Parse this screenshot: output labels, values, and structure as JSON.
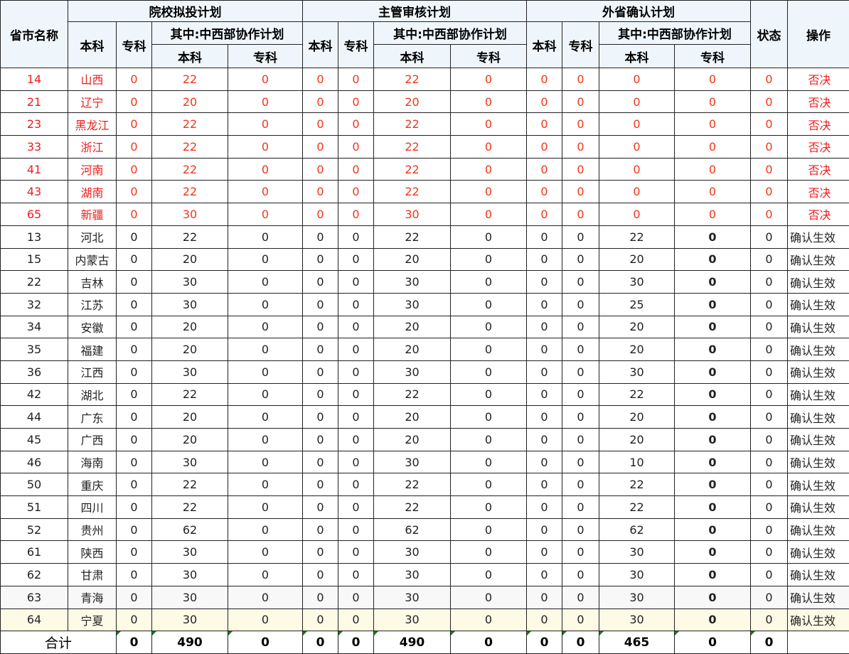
{
  "header": {
    "province": "省市名称",
    "groups": [
      "院校拟投计划",
      "主管审核计划",
      "外省确认计划"
    ],
    "undergrad": "本科",
    "junior": "专科",
    "cooperation": "其中:中西部协作计划",
    "status": "状态",
    "action": "操作"
  },
  "colors": {
    "rejected_text": "#f01c1c",
    "header_bg": "#eef6fc",
    "highlight_row_bg": "#fdfbe6"
  },
  "rows": [
    {
      "code": "14",
      "name": "山西",
      "values": [
        "0",
        "22",
        "0",
        "0",
        "0",
        "22",
        "0",
        "0",
        "0",
        "0",
        "0",
        "0"
      ],
      "action": "否决",
      "rejected": true
    },
    {
      "code": "21",
      "name": "辽宁",
      "values": [
        "0",
        "20",
        "0",
        "0",
        "0",
        "20",
        "0",
        "0",
        "0",
        "0",
        "0",
        "0"
      ],
      "action": "否决",
      "rejected": true
    },
    {
      "code": "23",
      "name": "黑龙江",
      "values": [
        "0",
        "22",
        "0",
        "0",
        "0",
        "22",
        "0",
        "0",
        "0",
        "0",
        "0",
        "0"
      ],
      "action": "否决",
      "rejected": true
    },
    {
      "code": "33",
      "name": "浙江",
      "values": [
        "0",
        "22",
        "0",
        "0",
        "0",
        "22",
        "0",
        "0",
        "0",
        "0",
        "0",
        "0"
      ],
      "action": "否决",
      "rejected": true
    },
    {
      "code": "41",
      "name": "河南",
      "values": [
        "0",
        "22",
        "0",
        "0",
        "0",
        "22",
        "0",
        "0",
        "0",
        "0",
        "0",
        "0"
      ],
      "action": "否决",
      "rejected": true
    },
    {
      "code": "43",
      "name": "湖南",
      "values": [
        "0",
        "22",
        "0",
        "0",
        "0",
        "22",
        "0",
        "0",
        "0",
        "0",
        "0",
        "0"
      ],
      "action": "否决",
      "rejected": true
    },
    {
      "code": "65",
      "name": "新疆",
      "values": [
        "0",
        "30",
        "0",
        "0",
        "0",
        "30",
        "0",
        "0",
        "0",
        "0",
        "0",
        "0"
      ],
      "action": "否决",
      "rejected": true
    },
    {
      "code": "13",
      "name": "河北",
      "values": [
        "0",
        "22",
        "0",
        "0",
        "0",
        "22",
        "0",
        "0",
        "0",
        "22",
        "0",
        "0"
      ],
      "action": "确认生效",
      "rejected": false
    },
    {
      "code": "15",
      "name": "内蒙古",
      "values": [
        "0",
        "20",
        "0",
        "0",
        "0",
        "20",
        "0",
        "0",
        "0",
        "20",
        "0",
        "0"
      ],
      "action": "确认生效",
      "rejected": false
    },
    {
      "code": "22",
      "name": "吉林",
      "values": [
        "0",
        "30",
        "0",
        "0",
        "0",
        "30",
        "0",
        "0",
        "0",
        "30",
        "0",
        "0"
      ],
      "action": "确认生效",
      "rejected": false
    },
    {
      "code": "32",
      "name": "江苏",
      "values": [
        "0",
        "30",
        "0",
        "0",
        "0",
        "30",
        "0",
        "0",
        "0",
        "25",
        "0",
        "0"
      ],
      "action": "确认生效",
      "rejected": false
    },
    {
      "code": "34",
      "name": "安徽",
      "values": [
        "0",
        "20",
        "0",
        "0",
        "0",
        "20",
        "0",
        "0",
        "0",
        "20",
        "0",
        "0"
      ],
      "action": "确认生效",
      "rejected": false
    },
    {
      "code": "35",
      "name": "福建",
      "values": [
        "0",
        "20",
        "0",
        "0",
        "0",
        "20",
        "0",
        "0",
        "0",
        "20",
        "0",
        "0"
      ],
      "action": "确认生效",
      "rejected": false
    },
    {
      "code": "36",
      "name": "江西",
      "values": [
        "0",
        "30",
        "0",
        "0",
        "0",
        "30",
        "0",
        "0",
        "0",
        "30",
        "0",
        "0"
      ],
      "action": "确认生效",
      "rejected": false
    },
    {
      "code": "42",
      "name": "湖北",
      "values": [
        "0",
        "22",
        "0",
        "0",
        "0",
        "22",
        "0",
        "0",
        "0",
        "22",
        "0",
        "0"
      ],
      "action": "确认生效",
      "rejected": false
    },
    {
      "code": "44",
      "name": "广东",
      "values": [
        "0",
        "20",
        "0",
        "0",
        "0",
        "20",
        "0",
        "0",
        "0",
        "20",
        "0",
        "0"
      ],
      "action": "确认生效",
      "rejected": false
    },
    {
      "code": "45",
      "name": "广西",
      "values": [
        "0",
        "20",
        "0",
        "0",
        "0",
        "20",
        "0",
        "0",
        "0",
        "20",
        "0",
        "0"
      ],
      "action": "确认生效",
      "rejected": false
    },
    {
      "code": "46",
      "name": "海南",
      "values": [
        "0",
        "30",
        "0",
        "0",
        "0",
        "30",
        "0",
        "0",
        "0",
        "10",
        "0",
        "0"
      ],
      "action": "确认生效",
      "rejected": false
    },
    {
      "code": "50",
      "name": "重庆",
      "values": [
        "0",
        "22",
        "0",
        "0",
        "0",
        "22",
        "0",
        "0",
        "0",
        "22",
        "0",
        "0"
      ],
      "action": "确认生效",
      "rejected": false
    },
    {
      "code": "51",
      "name": "四川",
      "values": [
        "0",
        "22",
        "0",
        "0",
        "0",
        "22",
        "0",
        "0",
        "0",
        "22",
        "0",
        "0"
      ],
      "action": "确认生效",
      "rejected": false
    },
    {
      "code": "52",
      "name": "贵州",
      "values": [
        "0",
        "62",
        "0",
        "0",
        "0",
        "62",
        "0",
        "0",
        "0",
        "62",
        "0",
        "0"
      ],
      "action": "确认生效",
      "rejected": false
    },
    {
      "code": "61",
      "name": "陕西",
      "values": [
        "0",
        "30",
        "0",
        "0",
        "0",
        "30",
        "0",
        "0",
        "0",
        "30",
        "0",
        "0"
      ],
      "action": "确认生效",
      "rejected": false
    },
    {
      "code": "62",
      "name": "甘肃",
      "values": [
        "0",
        "30",
        "0",
        "0",
        "0",
        "30",
        "0",
        "0",
        "0",
        "30",
        "0",
        "0"
      ],
      "action": "确认生效",
      "rejected": false
    },
    {
      "code": "63",
      "name": "青海",
      "values": [
        "0",
        "30",
        "0",
        "0",
        "0",
        "30",
        "0",
        "0",
        "0",
        "30",
        "0",
        "0"
      ],
      "action": "确认生效",
      "rejected": false
    },
    {
      "code": "64",
      "name": "宁夏",
      "values": [
        "0",
        "30",
        "0",
        "0",
        "0",
        "30",
        "0",
        "0",
        "0",
        "30",
        "0",
        "0"
      ],
      "action": "确认生效",
      "rejected": false
    }
  ],
  "footer": {
    "label": "合计",
    "values": [
      "0",
      "490",
      "0",
      "0",
      "0",
      "490",
      "0",
      "0",
      "0",
      "465",
      "0",
      "0"
    ]
  }
}
